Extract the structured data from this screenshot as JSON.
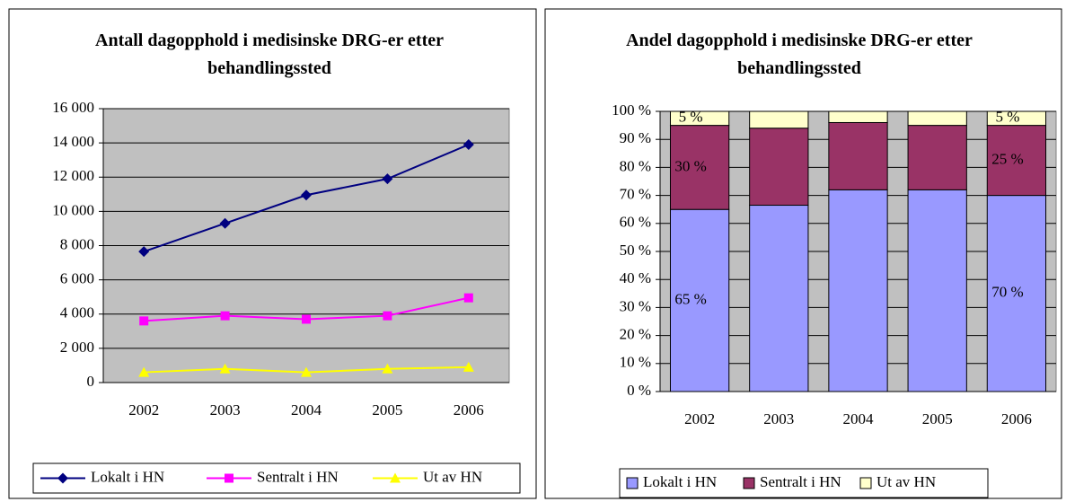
{
  "chart_data": [
    {
      "type": "line",
      "title": "Antall dagopphold i medisinske DRG-er etter behandlingssted",
      "categories": [
        "2002",
        "2003",
        "2004",
        "2005",
        "2006"
      ],
      "series": [
        {
          "name": "Lokalt i HN",
          "color": "#000080",
          "marker": "diamond",
          "values": [
            7650,
            9300,
            10950,
            11900,
            13900
          ]
        },
        {
          "name": "Sentralt i HN",
          "color": "#ff00ff",
          "marker": "square",
          "values": [
            3600,
            3900,
            3700,
            3900,
            4950
          ]
        },
        {
          "name": "Ut av HN",
          "color": "#ffff00",
          "marker": "triangle",
          "values": [
            600,
            800,
            600,
            800,
            900
          ]
        }
      ],
      "ylim": [
        0,
        16000
      ],
      "yticks": [
        0,
        {
          "value": 2000,
          "label": "2 000"
        },
        {
          "value": 4000,
          "label": "4 000"
        },
        {
          "value": 6000,
          "label": "6 000"
        },
        {
          "value": 8000,
          "label": "8 000"
        },
        {
          "value": 10000,
          "label": "10 000"
        },
        {
          "value": 12000,
          "label": "12 000"
        },
        {
          "value": 14000,
          "label": "14 000"
        },
        {
          "value": 16000,
          "label": "16 000"
        }
      ],
      "grid": true,
      "legend": "bottom"
    },
    {
      "type": "stacked_bar",
      "title": "Andel dagopphold i medisinske DRG-er etter behandlingssted",
      "categories": [
        "2002",
        "2003",
        "2004",
        "2005",
        "2006"
      ],
      "series": [
        {
          "name": "Lokalt i HN",
          "color": "#9999ff",
          "values": [
            65,
            66.5,
            72,
            72,
            70
          ],
          "value_labels": [
            "65 %",
            null,
            null,
            null,
            "70 %"
          ]
        },
        {
          "name": "Sentralt i HN",
          "color": "#993366",
          "values": [
            30,
            27.5,
            24,
            23,
            25
          ],
          "value_labels": [
            "30 %",
            null,
            null,
            null,
            "25 %"
          ]
        },
        {
          "name": "Ut av HN",
          "color": "#ffffcc",
          "values": [
            5,
            6,
            4,
            5,
            5
          ],
          "value_labels": [
            "5 %",
            null,
            null,
            null,
            "5 %"
          ]
        }
      ],
      "ylim": [
        0,
        100
      ],
      "yticks": [
        {
          "value": 0,
          "label": "0 %"
        },
        {
          "value": 10,
          "label": "10 %"
        },
        {
          "value": 20,
          "label": "20 %"
        },
        {
          "value": 30,
          "label": "30 %"
        },
        {
          "value": 40,
          "label": "40 %"
        },
        {
          "value": 50,
          "label": "50 %"
        },
        {
          "value": 60,
          "label": "60 %"
        },
        {
          "value": 70,
          "label": "70 %"
        },
        {
          "value": 80,
          "label": "80 %"
        },
        {
          "value": 90,
          "label": "90 %"
        },
        {
          "value": 100,
          "label": "100 %"
        }
      ],
      "grid": true,
      "legend": "bottom"
    }
  ]
}
